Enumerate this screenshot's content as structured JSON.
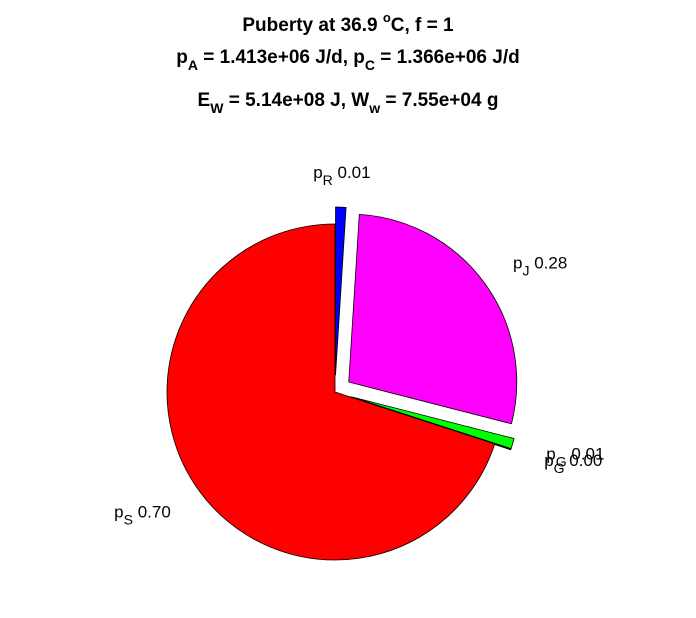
{
  "title_lines": [
    {
      "parts": [
        {
          "t": "Puberty at 36.9 "
        },
        {
          "t": "o",
          "s": "sup"
        },
        {
          "t": "C, f = 1"
        }
      ]
    },
    {
      "parts": [
        {
          "t": "p"
        },
        {
          "t": "A",
          "s": "sub"
        },
        {
          "t": " = 1.413e+06 J/d,  p"
        },
        {
          "t": "C",
          "s": "sub"
        },
        {
          "t": " = 1.366e+06 J/d"
        }
      ]
    },
    {
      "parts": [
        {
          "t": "E"
        },
        {
          "t": "W",
          "s": "sub"
        },
        {
          "t": " = 5.14e+08 J, W"
        },
        {
          "t": "w",
          "s": "sub"
        },
        {
          "t": " = 7.55e+04 g"
        }
      ]
    }
  ],
  "chart_data": {
    "type": "pie",
    "title": "Puberty at 36.9 oC, f = 1 / pA = 1.413e+06 J/d,  pC = 1.366e+06 J/d / EW = 5.14e+08 J, Ww = 7.55e+04 g",
    "slices": [
      {
        "name": "R",
        "value": 0.01,
        "value_label": "0.01",
        "color": "#0000ff",
        "exploded": true
      },
      {
        "name": "J",
        "value": 0.28,
        "value_label": "0.28",
        "color": "#ff00ff",
        "exploded": true
      },
      {
        "name": "G",
        "value": 0.01,
        "value_label": "0.01",
        "color": "#00ff00",
        "exploded": true
      },
      {
        "name": "G",
        "value": 0.0,
        "value_label": "0.00",
        "color": "#00ffff",
        "exploded": true
      },
      {
        "name": "S",
        "value": 0.7,
        "value_label": "0.70",
        "color": "#ff0000",
        "exploded": false
      }
    ]
  }
}
